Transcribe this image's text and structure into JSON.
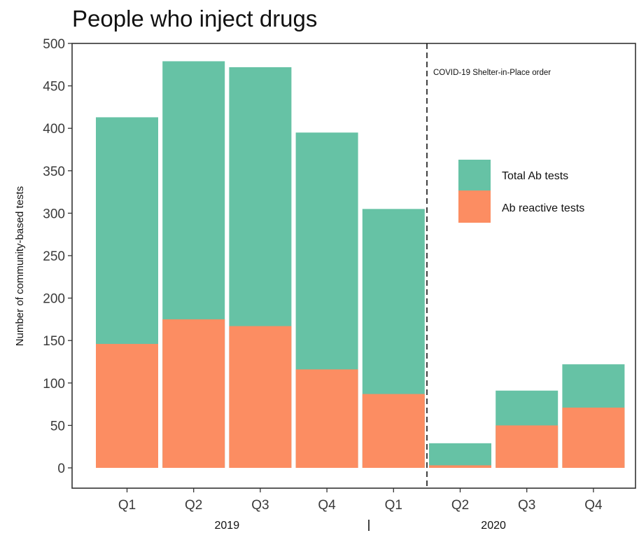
{
  "chart_data": {
    "type": "bar",
    "stacked": false,
    "overlay": true,
    "title": "People who inject drugs",
    "ylabel": "Number of community-based tests",
    "xlabel": "",
    "ylim": [
      0,
      500
    ],
    "yticks": [
      0,
      50,
      100,
      150,
      200,
      250,
      300,
      350,
      400,
      450,
      500
    ],
    "categories": [
      "Q1",
      "Q2",
      "Q3",
      "Q4",
      "Q1",
      "Q2",
      "Q3",
      "Q4"
    ],
    "year_groups": [
      {
        "label": "2019",
        "start": 0,
        "end": 3
      },
      {
        "label": "2020",
        "start": 4,
        "end": 7
      }
    ],
    "series": [
      {
        "name": "Total Ab tests",
        "color": "#66c2a5",
        "values": [
          413,
          479,
          472,
          395,
          305,
          29,
          91,
          122
        ]
      },
      {
        "name": "Ab reactive tests",
        "color": "#fc8d62",
        "values": [
          146,
          175,
          167,
          116,
          87,
          3,
          50,
          71
        ]
      }
    ],
    "annotations": [
      {
        "text": "COVID-19 Shelter-in-Place order",
        "after_category_index": 4,
        "line_style": "dashed"
      }
    ],
    "legend": {
      "placement": "right"
    },
    "grid": false
  }
}
